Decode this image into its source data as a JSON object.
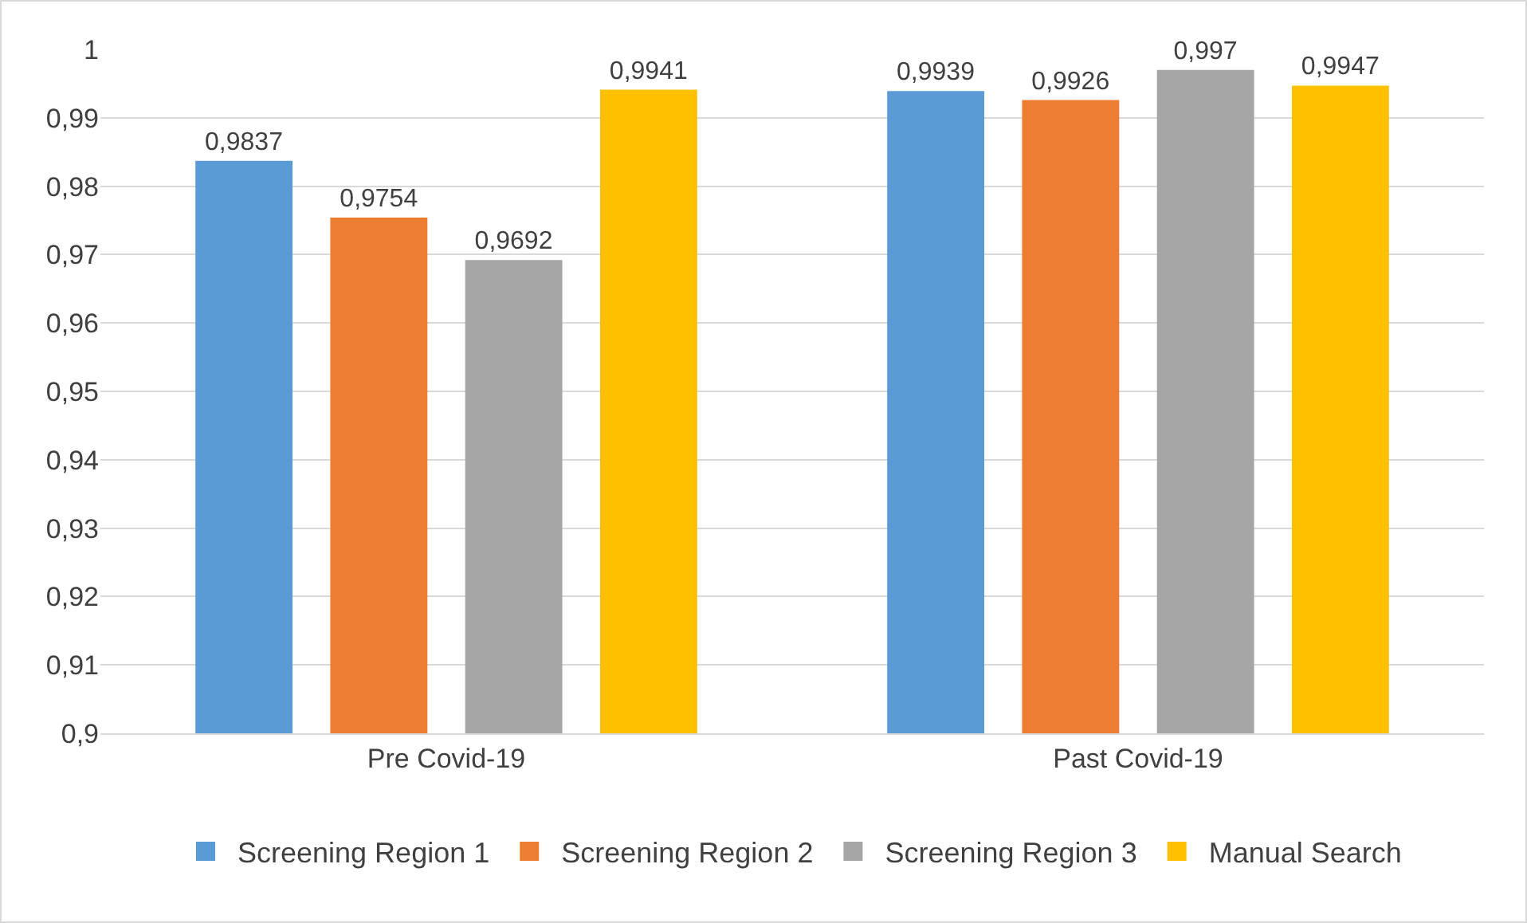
{
  "chart_data": {
    "type": "bar",
    "categories": [
      "Pre Covid-19",
      "Past Covid-19"
    ],
    "series": [
      {
        "name": "Screening Region 1",
        "color": "#5b9bd5",
        "values": [
          0.9837,
          0.9939
        ],
        "value_labels": [
          "0,9837",
          "0,9939"
        ]
      },
      {
        "name": "Screening Region 2",
        "color": "#ed7d31",
        "values": [
          0.9754,
          0.9926
        ],
        "value_labels": [
          "0,9754",
          "0,9926"
        ]
      },
      {
        "name": "Screening Region 3",
        "color": "#a5a5a5",
        "values": [
          0.9692,
          0.997
        ],
        "value_labels": [
          "0,9692",
          "0,997"
        ]
      },
      {
        "name": "Manual Search",
        "color": "#ffc000",
        "values": [
          0.9941,
          0.9947
        ],
        "value_labels": [
          "0,9941",
          "0,9947"
        ]
      }
    ],
    "ylim": [
      0.9,
      1
    ],
    "yticks": [
      {
        "value": 0.9,
        "label": "0,9"
      },
      {
        "value": 0.91,
        "label": "0,91"
      },
      {
        "value": 0.92,
        "label": "0,92"
      },
      {
        "value": 0.93,
        "label": "0,93"
      },
      {
        "value": 0.94,
        "label": "0,94"
      },
      {
        "value": 0.95,
        "label": "0,95"
      },
      {
        "value": 0.96,
        "label": "0,96"
      },
      {
        "value": 0.97,
        "label": "0,97"
      },
      {
        "value": 0.98,
        "label": "0,98"
      },
      {
        "value": 0.99,
        "label": "0,99"
      },
      {
        "value": 1,
        "label": "1"
      }
    ],
    "grid": "y",
    "legend": "bottom"
  }
}
